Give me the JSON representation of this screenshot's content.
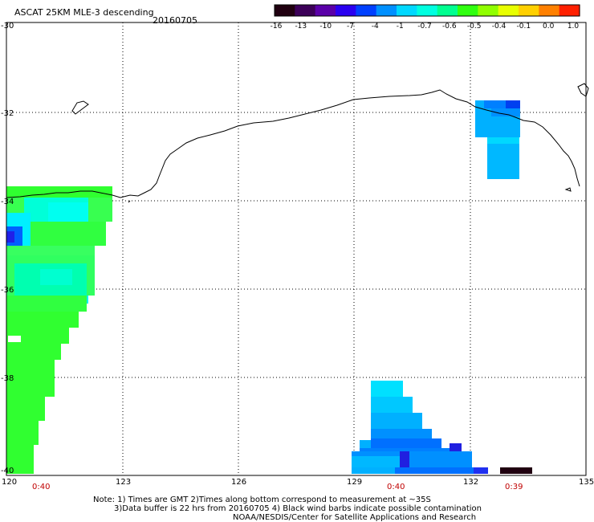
{
  "header": {
    "title": "ASCAT 25KM MLE-3 descending",
    "date": "20160705"
  },
  "colorbar": {
    "labels": [
      "-16",
      "-13",
      "-10",
      "-7",
      "-4",
      "-1",
      "-0.7",
      "-0.6",
      "-0.5",
      "-0.4",
      "-0.1",
      "0.0",
      "1.0"
    ],
    "colors": [
      "#200010",
      "#3c0058",
      "#5a00a8",
      "#2a00f0",
      "#0040ff",
      "#0090ff",
      "#00d8ff",
      "#00ffe0",
      "#00ff90",
      "#30ff10",
      "#90ff00",
      "#e8ff00",
      "#ffd000",
      "#ff8000",
      "#ff2000"
    ]
  },
  "axes": {
    "lon_labels": [
      "120",
      "123",
      "126",
      "129",
      "132",
      "135"
    ],
    "lat_labels": [
      "-30",
      "-32",
      "-34",
      "-36",
      "-38",
      "-40"
    ]
  },
  "pass_times": [
    "0:40",
    "0:40",
    "0:39"
  ],
  "notes": {
    "line1": "Note: 1) Times are GMT 2)Times along bottom correspond to measurement at ~35S",
    "line2": "3)Data buffer is 22 hrs from 20160705 4) Black wind barbs indicate possible contamination",
    "line3": "NOAA/NESDIS/Center for Satellite Applications and Research"
  }
}
